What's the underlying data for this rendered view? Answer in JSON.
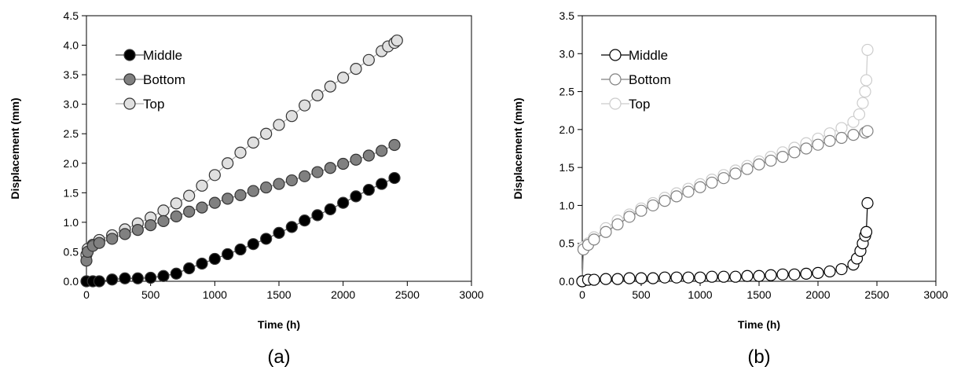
{
  "chart_data": [
    {
      "type": "scatter",
      "caption": "(a)",
      "xlabel": "Time (h)",
      "ylabel": "Displacement (mm)",
      "xlim": [
        0,
        3000
      ],
      "ylim": [
        0,
        4.5
      ],
      "xticks": [
        "0",
        "500",
        "1000",
        "1500",
        "2000",
        "2500",
        "3000"
      ],
      "yticks": [
        "0.0",
        "0.5",
        "1.0",
        "1.5",
        "2.0",
        "2.5",
        "3.0",
        "3.5",
        "4.0",
        "4.5"
      ],
      "grid": false,
      "legend": "top-left",
      "series": [
        {
          "name": "Middle",
          "marker_fill": "#000000",
          "marker_stroke": "#333333",
          "line_color": "#555555",
          "x": [
            0,
            50,
            100,
            200,
            300,
            400,
            500,
            600,
            700,
            800,
            900,
            1000,
            1100,
            1200,
            1300,
            1400,
            1500,
            1600,
            1700,
            1800,
            1900,
            2000,
            2100,
            2200,
            2300,
            2400
          ],
          "y": [
            0.0,
            0.0,
            0.0,
            0.03,
            0.05,
            0.05,
            0.06,
            0.09,
            0.13,
            0.22,
            0.3,
            0.38,
            0.46,
            0.54,
            0.63,
            0.72,
            0.82,
            0.92,
            1.03,
            1.12,
            1.22,
            1.33,
            1.44,
            1.55,
            1.65,
            1.75
          ]
        },
        {
          "name": "Bottom",
          "marker_fill": "#808080",
          "marker_stroke": "#333333",
          "line_color": "#888888",
          "x": [
            0,
            10,
            50,
            100,
            200,
            300,
            400,
            500,
            600,
            700,
            800,
            900,
            1000,
            1100,
            1200,
            1300,
            1400,
            1500,
            1600,
            1700,
            1800,
            1900,
            2000,
            2100,
            2200,
            2300,
            2400
          ],
          "y": [
            0.35,
            0.5,
            0.6,
            0.65,
            0.72,
            0.8,
            0.87,
            0.95,
            1.02,
            1.1,
            1.18,
            1.25,
            1.33,
            1.4,
            1.46,
            1.53,
            1.59,
            1.65,
            1.71,
            1.78,
            1.85,
            1.92,
            1.99,
            2.06,
            2.13,
            2.21,
            2.31
          ]
        },
        {
          "name": "Top",
          "marker_fill": "#e0e0e0",
          "marker_stroke": "#333333",
          "line_color": "#aaaaaa",
          "x": [
            0,
            10,
            50,
            100,
            200,
            300,
            400,
            500,
            600,
            700,
            800,
            900,
            1000,
            1100,
            1200,
            1300,
            1400,
            1500,
            1600,
            1700,
            1800,
            1900,
            2000,
            2100,
            2200,
            2300,
            2350,
            2400,
            2420
          ],
          "y": [
            0.45,
            0.55,
            0.62,
            0.7,
            0.78,
            0.88,
            0.98,
            1.08,
            1.2,
            1.32,
            1.45,
            1.62,
            1.8,
            2.0,
            2.18,
            2.35,
            2.5,
            2.65,
            2.8,
            2.98,
            3.15,
            3.3,
            3.45,
            3.6,
            3.75,
            3.9,
            3.98,
            4.04,
            4.08
          ]
        }
      ]
    },
    {
      "type": "scatter",
      "caption": "(b)",
      "xlabel": "Time (h)",
      "ylabel": "Displacement (mm)",
      "xlim": [
        0,
        3000
      ],
      "ylim": [
        0,
        3.5
      ],
      "xticks": [
        "0",
        "500",
        "1000",
        "1500",
        "2000",
        "2500",
        "3000"
      ],
      "yticks": [
        "0.0",
        "0.5",
        "1.0",
        "1.5",
        "2.0",
        "2.5",
        "3.0",
        "3.5"
      ],
      "grid": false,
      "legend": "top-left",
      "series": [
        {
          "name": "Middle",
          "marker_fill": "#ffffff",
          "marker_stroke": "#000000",
          "line_color": "#000000",
          "x": [
            0,
            50,
            100,
            200,
            300,
            400,
            500,
            600,
            700,
            800,
            900,
            1000,
            1100,
            1200,
            1300,
            1400,
            1500,
            1600,
            1700,
            1800,
            1900,
            2000,
            2100,
            2200,
            2300,
            2330,
            2360,
            2380,
            2400,
            2410,
            2420
          ],
          "y": [
            0.0,
            0.02,
            0.02,
            0.03,
            0.03,
            0.04,
            0.04,
            0.04,
            0.05,
            0.05,
            0.05,
            0.05,
            0.06,
            0.06,
            0.06,
            0.07,
            0.07,
            0.08,
            0.09,
            0.09,
            0.1,
            0.11,
            0.13,
            0.16,
            0.22,
            0.3,
            0.4,
            0.5,
            0.6,
            0.65,
            1.03
          ]
        },
        {
          "name": "Bottom",
          "marker_fill": "#ffffff",
          "marker_stroke": "#808080",
          "line_color": "#808080",
          "x": [
            0,
            10,
            50,
            100,
            200,
            300,
            400,
            500,
            600,
            700,
            800,
            900,
            1000,
            1100,
            1200,
            1300,
            1400,
            1500,
            1600,
            1700,
            1800,
            1900,
            2000,
            2100,
            2200,
            2300,
            2400,
            2420
          ],
          "y": [
            0.0,
            0.42,
            0.48,
            0.55,
            0.65,
            0.75,
            0.85,
            0.93,
            1.0,
            1.06,
            1.12,
            1.18,
            1.24,
            1.3,
            1.36,
            1.42,
            1.48,
            1.54,
            1.59,
            1.64,
            1.7,
            1.75,
            1.8,
            1.85,
            1.89,
            1.93,
            1.96,
            1.98
          ]
        },
        {
          "name": "Top",
          "marker_fill": "#ffffff",
          "marker_stroke": "#cccccc",
          "line_color": "#cccccc",
          "x": [
            0,
            10,
            50,
            100,
            200,
            300,
            400,
            500,
            600,
            700,
            800,
            900,
            1000,
            1100,
            1200,
            1300,
            1400,
            1500,
            1600,
            1700,
            1800,
            1900,
            2000,
            2100,
            2200,
            2300,
            2350,
            2380,
            2400,
            2410,
            2420
          ],
          "y": [
            0.0,
            0.45,
            0.5,
            0.58,
            0.7,
            0.8,
            0.88,
            0.96,
            1.03,
            1.1,
            1.16,
            1.22,
            1.28,
            1.34,
            1.4,
            1.46,
            1.52,
            1.58,
            1.64,
            1.7,
            1.76,
            1.82,
            1.88,
            1.95,
            2.02,
            2.1,
            2.2,
            2.35,
            2.5,
            2.65,
            3.05
          ]
        }
      ]
    }
  ]
}
